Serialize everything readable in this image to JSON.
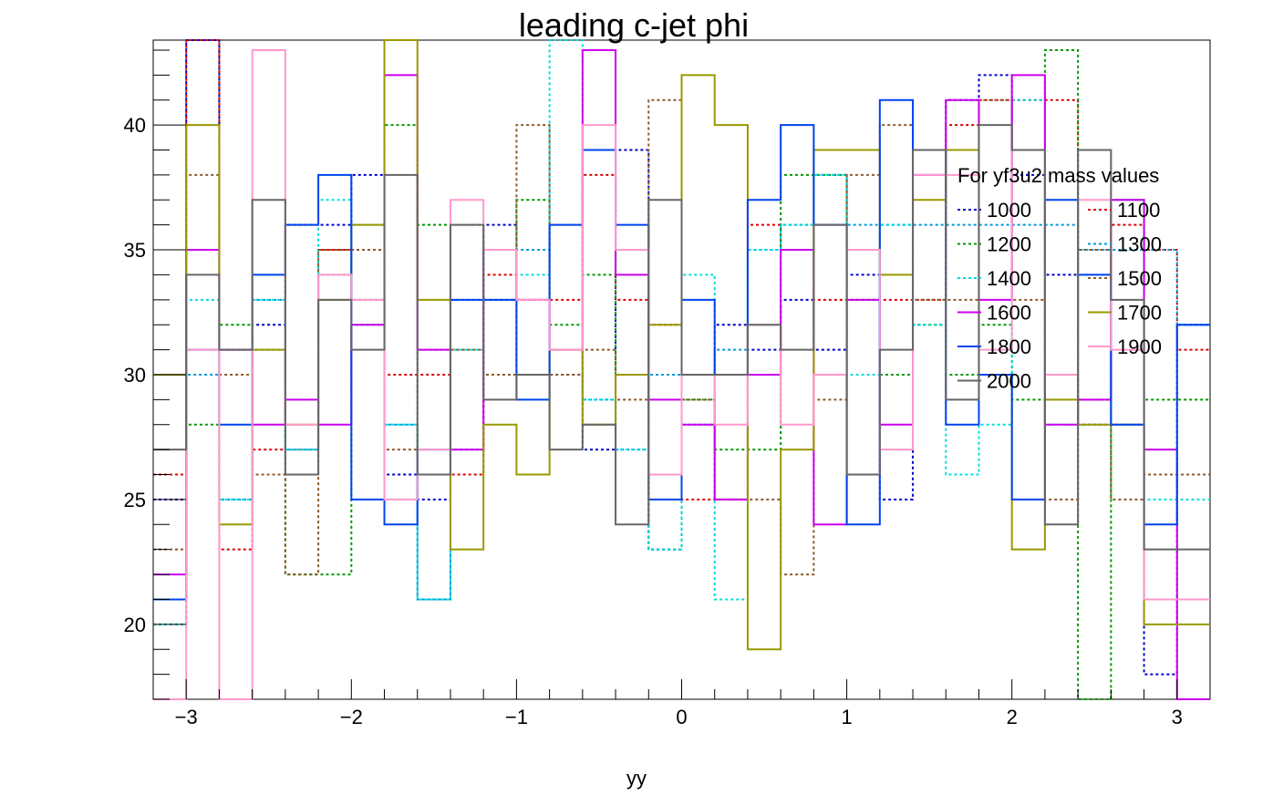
{
  "chart_data": {
    "type": "histogram-step",
    "title": "leading c-jet phi",
    "xlabel": "yy",
    "ylabel": "",
    "xlim": [
      -3.2,
      3.2
    ],
    "ylim": [
      17,
      43.4
    ],
    "x_ticks": [
      -3,
      -2,
      -1,
      0,
      1,
      2,
      3
    ],
    "x_tick_labels": [
      "−3",
      "−2",
      "−1",
      "0",
      "1",
      "2",
      "3"
    ],
    "y_ticks": [
      20,
      25,
      30,
      35,
      40
    ],
    "y_tick_labels": [
      "20",
      "25",
      "30",
      "35",
      "40"
    ],
    "bin_edges": [
      -3.2,
      -3.0,
      -2.8,
      -2.6,
      -2.4,
      -2.2,
      -2.0,
      -1.8,
      -1.6,
      -1.4,
      -1.2,
      -1.0,
      -0.8,
      -0.6,
      -0.4,
      -0.2,
      0.0,
      0.2,
      0.4,
      0.6,
      0.8,
      1.0,
      1.2,
      1.4,
      1.6,
      1.8,
      2.0,
      2.2,
      2.4,
      2.6,
      2.8,
      3.0,
      3.2
    ],
    "legend": {
      "title": "For yf3u2 mass values",
      "position": "top-right",
      "columns": 2
    },
    "series": [
      {
        "name": "1000",
        "color": "#0000cc",
        "dash": "dotted",
        "values": [
          25,
          45,
          31,
          32,
          36,
          36,
          38,
          26,
          25,
          27,
          36,
          30,
          30,
          27,
          39,
          23,
          30,
          32,
          31,
          33,
          31,
          34,
          25,
          39,
          41,
          42,
          38,
          34,
          28,
          28,
          18,
          32
        ]
      },
      {
        "name": "1100",
        "color": "#dd0000",
        "dash": "dotted",
        "values": [
          26,
          45,
          23,
          27,
          27,
          35,
          33,
          30,
          30,
          26,
          34,
          33,
          33,
          38,
          33,
          32,
          25,
          25,
          36,
          35,
          33,
          33,
          33,
          33,
          40,
          41,
          41,
          41,
          29,
          36,
          35,
          31
        ]
      },
      {
        "name": "1200",
        "color": "#009900",
        "dash": "dotted",
        "values": [
          20,
          28,
          32,
          31,
          22,
          22,
          32,
          40,
          36,
          36,
          33,
          37,
          32,
          34,
          30,
          23,
          29,
          27,
          27,
          38,
          38,
          33,
          30,
          32,
          30,
          32,
          29,
          43,
          17,
          37,
          29,
          29
        ]
      },
      {
        "name": "1300",
        "color": "#0099dd",
        "dash": "dotted",
        "values": [
          20,
          30,
          25,
          33,
          27,
          34,
          36,
          28,
          21,
          33,
          33,
          35,
          36,
          29,
          27,
          30,
          28,
          31,
          35,
          36,
          38,
          36,
          36,
          36,
          36,
          36,
          36,
          36,
          35,
          35,
          35,
          32
        ]
      },
      {
        "name": "1400",
        "color": "#00dddd",
        "dash": "dotted",
        "values": [
          20,
          33,
          25,
          33,
          27,
          37,
          33,
          28,
          21,
          31,
          35,
          34,
          45,
          29,
          27,
          23,
          34,
          21,
          35,
          36,
          38,
          30,
          36,
          32,
          26,
          28,
          41,
          28,
          34,
          37,
          25,
          25
        ]
      },
      {
        "name": "1500",
        "color": "#8b5a2b",
        "dash": "dotted",
        "values": [
          23,
          38,
          30,
          26,
          22,
          35,
          35,
          27,
          31,
          31,
          30,
          40,
          30,
          31,
          29,
          41,
          29,
          25,
          25,
          22,
          29,
          38,
          40,
          33,
          33,
          41,
          33,
          25,
          35,
          25,
          26,
          26
        ]
      },
      {
        "name": "1600",
        "color": "#cc00ee",
        "dash": "solid",
        "values": [
          22,
          35,
          31,
          28,
          29,
          28,
          32,
          42,
          31,
          27,
          35,
          33,
          31,
          43,
          34,
          29,
          28,
          25,
          30,
          35,
          24,
          33,
          28,
          38,
          41,
          33,
          42,
          28,
          29,
          37,
          27,
          17
        ]
      },
      {
        "name": "1700",
        "color": "#999900",
        "dash": "solid",
        "values": [
          30,
          40,
          24,
          31,
          28,
          33,
          36,
          45,
          33,
          23,
          28,
          26,
          31,
          28,
          30,
          32,
          42,
          40,
          19,
          27,
          39,
          39,
          34,
          37,
          39,
          30,
          23,
          29,
          28,
          28,
          20,
          20
        ]
      },
      {
        "name": "1800",
        "color": "#0044ee",
        "dash": "solid",
        "values": [
          21,
          31,
          28,
          34,
          36,
          38,
          25,
          24,
          27,
          33,
          33,
          29,
          36,
          39,
          36,
          25,
          33,
          30,
          37,
          40,
          36,
          24,
          41,
          39,
          28,
          30,
          25,
          37,
          34,
          28,
          24,
          32
        ]
      },
      {
        "name": "1900",
        "color": "#ff99cc",
        "dash": "solid",
        "values": [
          17,
          31,
          17,
          43,
          28,
          34,
          33,
          25,
          27,
          37,
          35,
          33,
          31,
          40,
          35,
          26,
          30,
          28,
          32,
          28,
          30,
          35,
          27,
          38,
          38,
          31,
          39,
          30,
          37,
          31,
          21,
          21
        ]
      },
      {
        "name": "2000",
        "color": "#666666",
        "dash": "solid",
        "values": [
          27,
          34,
          31,
          37,
          26,
          33,
          31,
          38,
          26,
          36,
          29,
          30,
          27,
          28,
          24,
          37,
          30,
          30,
          32,
          31,
          36,
          26,
          31,
          39,
          29,
          40,
          39,
          24,
          39,
          33,
          23,
          23
        ]
      }
    ]
  }
}
